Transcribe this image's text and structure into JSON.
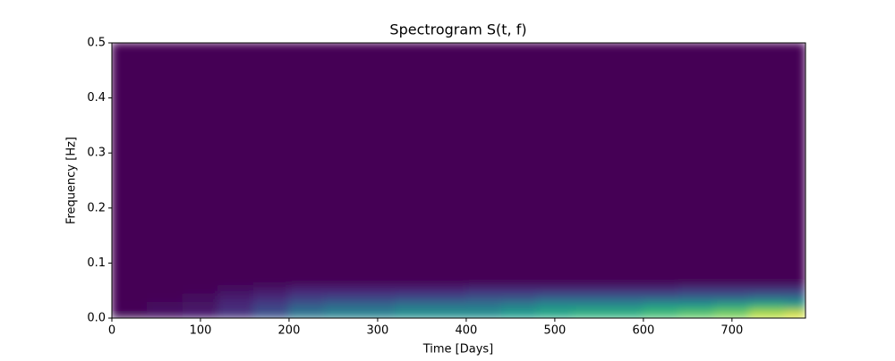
{
  "chart_data": {
    "type": "heatmap",
    "title": "Spectrogram S(t, f)",
    "x_label": "Time [Days]",
    "y_label": "Frequency [Hz]",
    "colormap": "viridis",
    "xbins": [
      0,
      40,
      80,
      120,
      160,
      200,
      240,
      280,
      320,
      360,
      400,
      440,
      480,
      520,
      560,
      600,
      640,
      680,
      720,
      760,
      783
    ],
    "ybins": [
      0,
      0.015,
      0.03,
      0.045,
      0.06,
      0.5
    ],
    "values": [
      [
        0.02,
        0.05,
        0.08,
        0.15,
        0.25,
        0.4,
        0.45,
        0.45,
        0.5,
        0.5,
        0.5,
        0.55,
        0.6,
        0.65,
        0.65,
        0.7,
        0.75,
        0.8,
        0.9,
        0.95
      ],
      [
        0.01,
        0.03,
        0.05,
        0.12,
        0.2,
        0.3,
        0.35,
        0.35,
        0.4,
        0.4,
        0.4,
        0.45,
        0.5,
        0.5,
        0.5,
        0.55,
        0.55,
        0.6,
        0.65,
        0.6
      ],
      [
        0,
        0.01,
        0.03,
        0.08,
        0.12,
        0.18,
        0.2,
        0.2,
        0.22,
        0.22,
        0.25,
        0.25,
        0.3,
        0.3,
        0.3,
        0.3,
        0.32,
        0.32,
        0.35,
        0.35
      ],
      [
        0,
        0,
        0.01,
        0.04,
        0.06,
        0.1,
        0.1,
        0.1,
        0.1,
        0.1,
        0.12,
        0.12,
        0.12,
        0.12,
        0.12,
        0.12,
        0.15,
        0.15,
        0.15,
        0.15
      ],
      [
        0,
        0,
        0,
        0,
        0,
        0,
        0,
        0,
        0,
        0,
        0,
        0,
        0,
        0,
        0,
        0,
        0,
        0,
        0,
        0
      ]
    ],
    "xlim": [
      0,
      783
    ],
    "ylim": [
      0,
      0.5
    ],
    "xticks": [
      0,
      100,
      200,
      300,
      400,
      500,
      600,
      700
    ],
    "yticks": [
      {
        "value": 0,
        "label": "0.0"
      },
      0.1,
      0.2,
      0.3,
      0.4,
      0.5
    ]
  }
}
